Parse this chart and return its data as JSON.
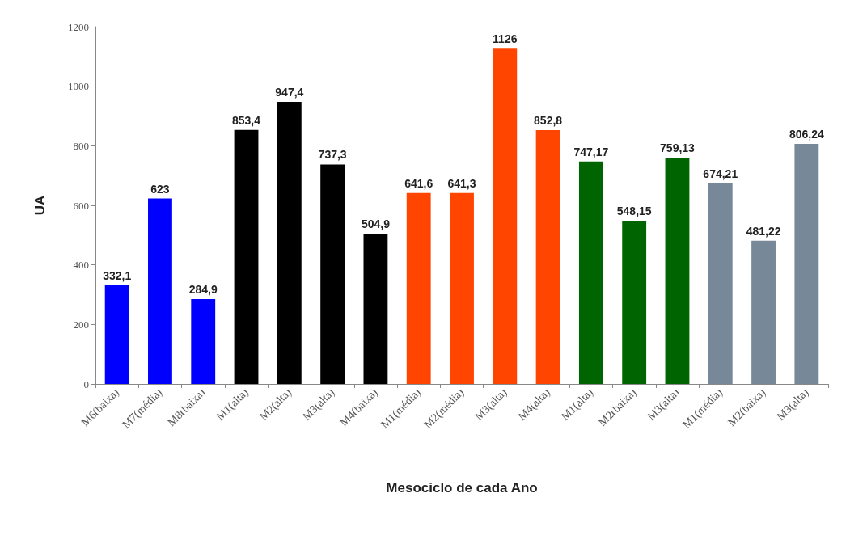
{
  "chart_data": {
    "type": "bar",
    "xlabel": "Mesociclo de cada Ano",
    "ylabel": "UA",
    "categories": [
      "M6(baixa)",
      "M7(média)",
      "M8(baixa)",
      "M1(alta)",
      "M2(alta)",
      "M3(alta)",
      "M4(baixa)",
      "M1(média)",
      "M2(média)",
      "M3(alta)",
      "M4(alta)",
      "M1(alta)",
      "M2(baixa)",
      "M3(alta)",
      "M1(média)",
      "M2(baixa)",
      "M3(alta)"
    ],
    "values": [
      332.1,
      623,
      284.9,
      853.4,
      947.4,
      737.3,
      504.9,
      641.6,
      641.3,
      1126,
      852.8,
      747.17,
      548.15,
      759.13,
      674.21,
      481.22,
      806.24
    ],
    "value_labels": [
      "332,1",
      "623",
      "284,9",
      "853,4",
      "947,4",
      "737,3",
      "504,9",
      "641,6",
      "641,3",
      "1126",
      "852,8",
      "747,17",
      "548,15",
      "759,13",
      "674,21",
      "481,22",
      "806,24"
    ],
    "colors": [
      "#0000ff",
      "#0000ff",
      "#0000ff",
      "#000000",
      "#000000",
      "#000000",
      "#000000",
      "#ff4500",
      "#ff4500",
      "#ff4500",
      "#ff4500",
      "#006400",
      "#006400",
      "#006400",
      "#778899",
      "#778899",
      "#778899"
    ],
    "ylim": [
      0,
      1200
    ],
    "yticks": [
      0,
      200,
      400,
      600,
      800,
      1000,
      1200
    ]
  }
}
